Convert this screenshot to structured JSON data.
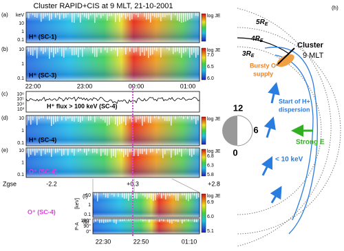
{
  "title": "Cluster RAPID+CIS at 9 MLT, 21-10-2001",
  "panels": [
    {
      "label": "(a)",
      "species": "H⁺ (SC-1)",
      "yticks": [
        "keV",
        "10",
        "1",
        "0.1"
      ],
      "cbar_title": "log JE",
      "cbar_ticks": []
    },
    {
      "label": "(b)",
      "species": "H⁺ (SC-3)",
      "yticks": [
        "10",
        "1",
        "0.1"
      ],
      "cbar_title": "log JE",
      "cbar_ticks": [
        "7.0",
        "6.5",
        "6.0"
      ]
    },
    {
      "label": "(c)",
      "species": "H⁺ flux > 100 keV (SC-4)",
      "yticks": [
        "10⁶",
        "10⁵",
        "10⁴",
        "10³"
      ],
      "cbar_title": "",
      "cbar_ticks": []
    },
    {
      "label": "(d)",
      "species": "H⁺ (SC-4)",
      "yticks": [
        "10",
        "1",
        "0.1"
      ],
      "cbar_title": "log JE",
      "cbar_ticks": []
    },
    {
      "label": "(e)",
      "species": "O⁺ (SC-4)",
      "yticks": [
        "10",
        "1",
        "0.1"
      ],
      "cbar_title": "log JE",
      "cbar_ticks": [
        "6.8",
        "6.3",
        "5.8"
      ]
    }
  ],
  "time_ticks": [
    "22:00",
    "23:00",
    "00:00",
    "01:00"
  ],
  "zgse": {
    "label": "Zgse",
    "values": [
      "-2.2",
      "+0.3",
      "+2.8"
    ]
  },
  "zoom": {
    "species": "O⁺ (SC-4)",
    "f": {
      "label": "(f)",
      "unit": "[keV]",
      "yticks": [
        "10",
        "1",
        "0.1"
      ],
      "cbar_title": "log JE",
      "cbar_ticks": [
        "6.9",
        "6.0",
        "5.1"
      ]
    },
    "g": {
      "label": "(g)",
      "axis": "P-A",
      "yticks": [
        "180°",
        "90°",
        "0°"
      ]
    },
    "time_ticks": [
      "22:30",
      "22:50",
      "01:10"
    ]
  },
  "diagram": {
    "label": "(h)",
    "rings": [
      {
        "n": "5",
        "r": "R",
        "sub": "E"
      },
      {
        "n": "4",
        "r": "R",
        "sub": "E"
      },
      {
        "n": "3",
        "r": "R",
        "sub": "E"
      }
    ],
    "cluster": "Cluster",
    "mlt": "9 MLT",
    "bursty": [
      "Bursty O⁺",
      "supply"
    ],
    "start": [
      "Start of H+",
      "dispersion"
    ],
    "strong_e": "Strong E",
    "low_energy": "< 10 keV",
    "mlt_12": "12",
    "mlt_6": "6",
    "mlt_0": "0"
  }
}
